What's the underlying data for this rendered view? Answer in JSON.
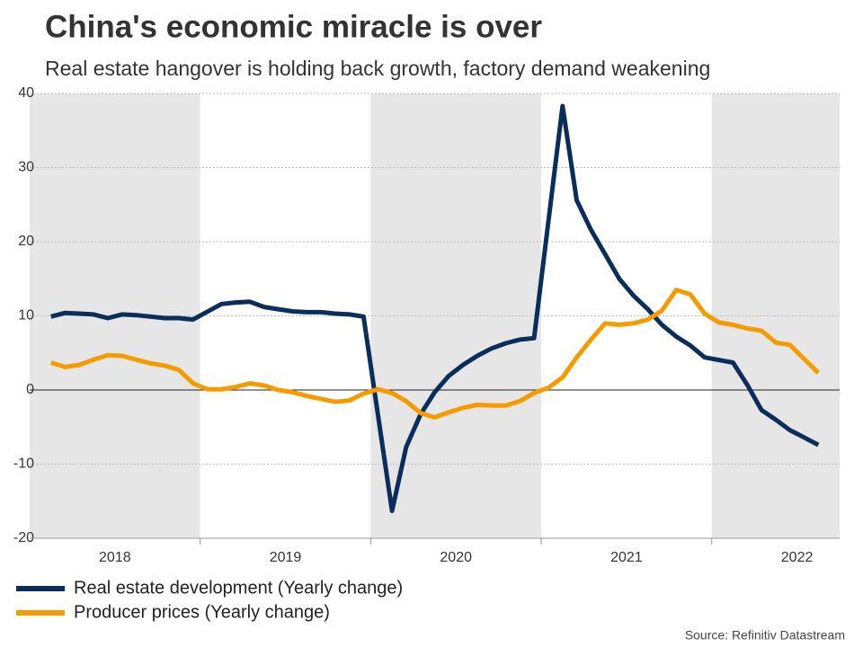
{
  "chart_data": {
    "type": "line",
    "title": "China's economic miracle is over",
    "subtitle": "Real estate hangover is holding back growth, factory demand weakening",
    "source": "Source: Refinitiv Datastream",
    "xlim": [
      2018,
      2022.75
    ],
    "xticks": [
      {
        "value": 2018.5,
        "label": "2018"
      },
      {
        "value": 2019.5,
        "label": "2019"
      },
      {
        "value": 2020.5,
        "label": "2020"
      },
      {
        "value": 2021.5,
        "label": "2021"
      },
      {
        "value": 2022.5,
        "label": "2022"
      }
    ],
    "ylim": [
      -20,
      40
    ],
    "yticks": [
      -20,
      -10,
      0,
      10,
      20,
      30,
      40
    ],
    "grid": true,
    "series": [
      {
        "name": "Real estate development (Yearly change)",
        "color": "#0b2d5b",
        "x": [
          2018.125,
          2018.208,
          2018.292,
          2018.375,
          2018.458,
          2018.542,
          2018.625,
          2018.708,
          2018.792,
          2018.875,
          2018.958,
          2019.125,
          2019.208,
          2019.292,
          2019.375,
          2019.458,
          2019.542,
          2019.625,
          2019.708,
          2019.792,
          2019.875,
          2019.958,
          2020.125,
          2020.208,
          2020.292,
          2020.375,
          2020.458,
          2020.542,
          2020.625,
          2020.708,
          2020.792,
          2020.875,
          2020.958,
          2021.125,
          2021.208,
          2021.292,
          2021.375,
          2021.458,
          2021.542,
          2021.625,
          2021.708,
          2021.792,
          2021.875,
          2021.958,
          2022.125,
          2022.208,
          2022.292,
          2022.375,
          2022.458,
          2022.542,
          2022.625
        ],
        "values": [
          9.9,
          10.4,
          10.3,
          10.2,
          9.7,
          10.2,
          10.1,
          9.9,
          9.7,
          9.7,
          9.5,
          11.6,
          11.8,
          11.9,
          11.2,
          10.9,
          10.6,
          10.5,
          10.5,
          10.3,
          10.2,
          9.9,
          -16.3,
          -7.7,
          -3.3,
          -0.3,
          1.9,
          3.4,
          4.6,
          5.6,
          6.3,
          6.8,
          7.0,
          38.3,
          25.6,
          21.6,
          18.3,
          15.0,
          12.7,
          10.9,
          8.8,
          7.2,
          6.0,
          4.4,
          3.7,
          0.7,
          -2.7,
          -4.0,
          -5.4,
          -6.4,
          -7.4
        ]
      },
      {
        "name": "Producer prices (Yearly change)",
        "color": "#f59b00",
        "x": [
          2018.125,
          2018.208,
          2018.292,
          2018.375,
          2018.458,
          2018.542,
          2018.625,
          2018.708,
          2018.792,
          2018.875,
          2018.958,
          2019.042,
          2019.125,
          2019.208,
          2019.292,
          2019.375,
          2019.458,
          2019.542,
          2019.625,
          2019.708,
          2019.792,
          2019.875,
          2019.958,
          2020.042,
          2020.125,
          2020.208,
          2020.292,
          2020.375,
          2020.458,
          2020.542,
          2020.625,
          2020.708,
          2020.792,
          2020.875,
          2020.958,
          2021.042,
          2021.125,
          2021.208,
          2021.292,
          2021.375,
          2021.458,
          2021.542,
          2021.625,
          2021.708,
          2021.792,
          2021.875,
          2021.958,
          2022.042,
          2022.125,
          2022.208,
          2022.292,
          2022.375,
          2022.458,
          2022.542,
          2022.625
        ],
        "values": [
          3.7,
          3.1,
          3.4,
          4.1,
          4.7,
          4.6,
          4.1,
          3.6,
          3.3,
          2.7,
          0.9,
          0.1,
          0.1,
          0.4,
          0.9,
          0.6,
          0.0,
          -0.3,
          -0.8,
          -1.2,
          -1.6,
          -1.4,
          -0.5,
          0.1,
          -0.4,
          -1.5,
          -3.1,
          -3.7,
          -3.0,
          -2.4,
          -2.0,
          -2.1,
          -2.1,
          -1.5,
          -0.4,
          0.3,
          1.7,
          4.4,
          6.8,
          9.0,
          8.8,
          9.0,
          9.5,
          10.7,
          13.5,
          12.9,
          10.3,
          9.1,
          8.8,
          8.3,
          8.0,
          6.4,
          6.1,
          4.2,
          2.3
        ]
      }
    ]
  }
}
